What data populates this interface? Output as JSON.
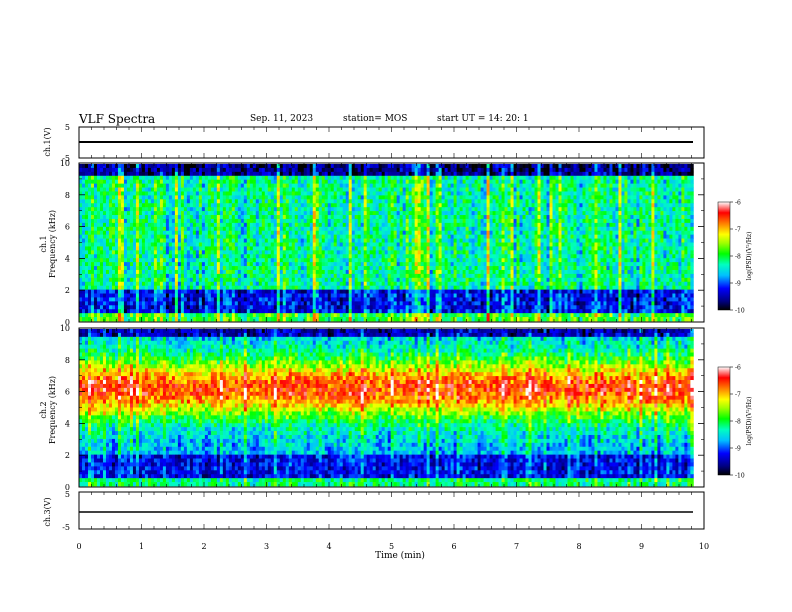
{
  "header": {
    "title": "VLF Spectra",
    "date": "Sep. 11, 2023",
    "station": "station= MOS",
    "start": "start  UT =   14: 20: 1"
  },
  "chart_data": [
    {
      "type": "line",
      "panel": "ch1-waveform",
      "ylabel": "ch.1(V)",
      "ylim": [
        -5,
        5
      ],
      "y_ticks": [
        "5",
        "-5"
      ],
      "xlim": [
        0,
        10
      ],
      "series": [
        {
          "values_constant": 0
        }
      ]
    },
    {
      "type": "heatmap",
      "panel": "ch1-spectrogram",
      "ylabel_top": "ch.1",
      "ylabel": "Frequency (kHz)",
      "ylim": [
        0,
        10
      ],
      "y_ticks": [
        "0",
        "2",
        "4",
        "6",
        "8",
        "10"
      ],
      "xlim": [
        0,
        9.83
      ],
      "colorbar": {
        "label": "log(PSD)(V²/Hz)",
        "range": [
          -10,
          -6
        ],
        "ticks": [
          "-6",
          "-7",
          "-8",
          "-9",
          "-10"
        ]
      },
      "character": "broadband vertical sferic streaks, dominant level -8 to -7"
    },
    {
      "type": "heatmap",
      "panel": "ch2-spectrogram",
      "ylabel_top": "ch.2",
      "ylabel": "Frequency (kHz)",
      "ylim": [
        0,
        10
      ],
      "y_ticks": [
        "0",
        "2",
        "4",
        "6",
        "8",
        "10"
      ],
      "xlim": [
        0,
        9.83
      ],
      "colorbar": {
        "label": "log(PSD)(V²/Hz)",
        "range": [
          -10,
          -6
        ],
        "ticks": [
          "-6",
          "-7",
          "-8",
          "-9",
          "-10"
        ]
      },
      "character": "intense band 4-8 kHz near -7 to -6, weaker below 3 kHz"
    },
    {
      "type": "line",
      "panel": "ch3-waveform",
      "ylabel": "ch.3(V)",
      "ylim": [
        -5,
        5
      ],
      "y_ticks": [
        "5",
        "-5"
      ],
      "xlim": [
        0,
        10
      ],
      "series": [
        {
          "values_constant": 0
        }
      ]
    }
  ],
  "x_axis": {
    "label": "Time (min)",
    "ticks": [
      "0",
      "1",
      "2",
      "3",
      "4",
      "5",
      "6",
      "7",
      "8",
      "9",
      "10"
    ],
    "range": [
      0,
      10
    ]
  },
  "colors": {
    "colormap": [
      "#000000",
      "#00007f",
      "#0000ff",
      "#0080ff",
      "#00ffff",
      "#00ff80",
      "#00ff00",
      "#80ff00",
      "#ffff00",
      "#ff8000",
      "#ff0000",
      "#ffffff"
    ]
  }
}
